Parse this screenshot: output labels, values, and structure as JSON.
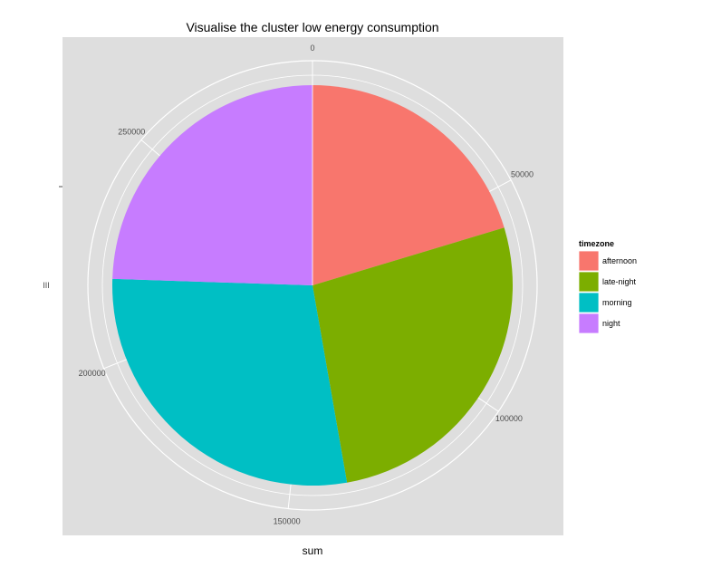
{
  "chart_data": {
    "type": "pie",
    "title": "Visualise the cluster low energy consumption",
    "xlabel": "sum",
    "ylabel": "",
    "radial_tick_labels": [
      "0",
      "50000",
      "100000",
      "150000",
      "200000",
      "250000"
    ],
    "radial_ticks": [
      0,
      50000,
      100000,
      150000,
      200000,
      250000
    ],
    "total": 290000,
    "legend": {
      "title": "timezone",
      "placement": "right"
    },
    "slices": [
      {
        "label": "afternoon",
        "value": 59000,
        "color": "#F8766D"
      },
      {
        "label": "late-night",
        "value": 78000,
        "color": "#7CAE00"
      },
      {
        "label": "morning",
        "value": 82000,
        "color": "#00BFC4"
      },
      {
        "label": "night",
        "value": 71000,
        "color": "#C77CFF"
      }
    ],
    "panel_background": "#dedede",
    "gridline_color": "#ffffff"
  }
}
